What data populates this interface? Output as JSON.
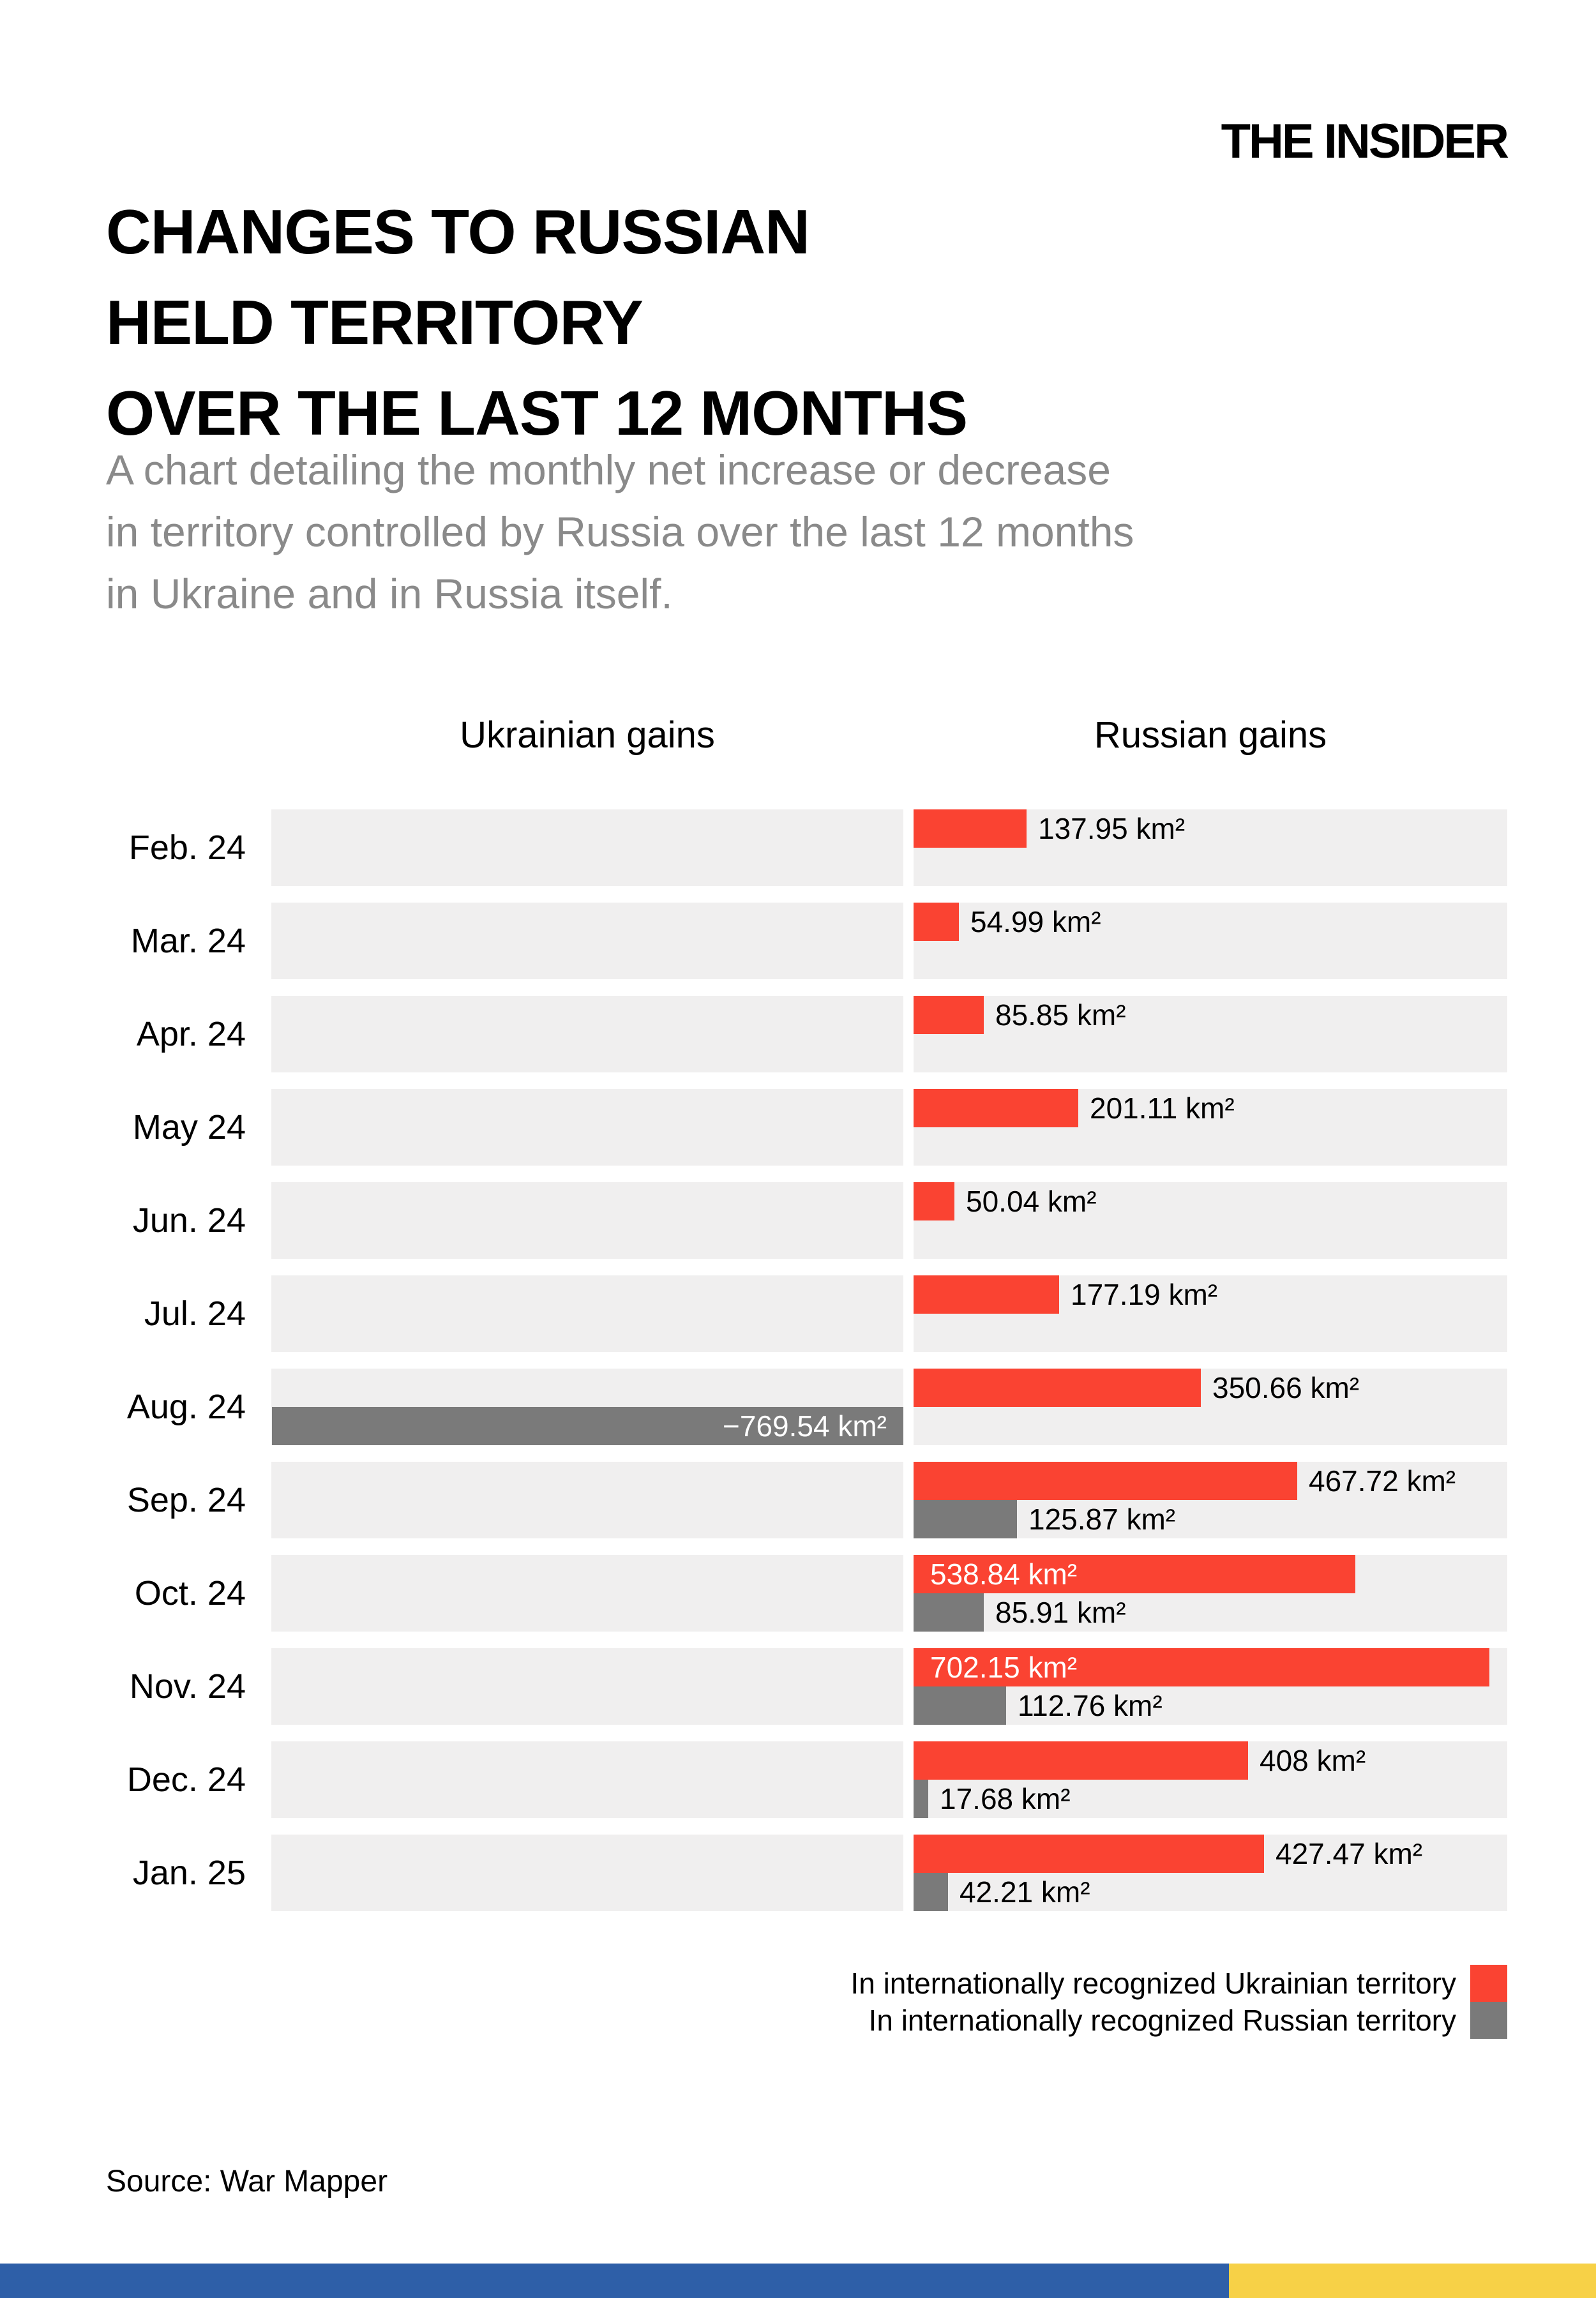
{
  "logo": "THE INSIDER",
  "title_lines": [
    "CHANGES TO RUSSIAN",
    "HELD TERRITORY",
    "OVER THE LAST 12 MONTHS"
  ],
  "subtitle_lines": [
    "A chart detailing the monthly net increase or decrease",
    "in territory controlled by Russia over the last 12 months",
    "in Ukraine and in Russia itself."
  ],
  "headers": {
    "left": "Ukrainian gains",
    "right": "Russian gains"
  },
  "legend": [
    {
      "label": "In internationally recognized Ukrainian territory",
      "color": "#fa4332"
    },
    {
      "label": "In internationally recognized Russian territory",
      "color": "#7a7a7a"
    }
  ],
  "source": "Source: War Mapper",
  "colors": {
    "red_bar": "#fa4332",
    "gray_bar": "#7a7a7a",
    "row_background": "#f0efef",
    "subtitle_text": "#8a8a8a",
    "flag_blue": "#2e5fa8",
    "flag_yellow": "#f7d147"
  },
  "axis": {
    "left_max_km2": 770,
    "right_max_km2": 724
  },
  "chart_data": {
    "type": "bar",
    "orientation": "horizontal-diverging",
    "title": "CHANGES TO RUSSIAN HELD TERRITORY OVER THE LAST 12 MONTHS",
    "unit": "km²",
    "left_axis_label": "Ukrainian gains",
    "right_axis_label": "Russian gains",
    "axis_ranges": {
      "left_max": 770,
      "right_max": 724
    },
    "legend_position": "bottom-right",
    "categories": [
      "Feb. 24",
      "Mar. 24",
      "Apr. 24",
      "May 24",
      "Jun. 24",
      "Jul. 24",
      "Aug. 24",
      "Sep. 24",
      "Oct. 24",
      "Nov. 24",
      "Dec. 24",
      "Jan. 25"
    ],
    "series": [
      {
        "name": "In internationally recognized Ukrainian territory",
        "color": "#fa4332",
        "values": [
          137.95,
          54.99,
          85.85,
          201.11,
          50.04,
          177.19,
          350.66,
          467.72,
          538.84,
          702.15,
          408,
          427.47
        ]
      },
      {
        "name": "In internationally recognized Russian territory",
        "color": "#7a7a7a",
        "values": [
          null,
          null,
          null,
          null,
          null,
          null,
          -769.54,
          125.87,
          85.91,
          112.76,
          17.68,
          42.21
        ]
      }
    ]
  },
  "rows": [
    {
      "month": "Feb. 24",
      "bars": [
        {
          "kind": "red",
          "value": 137.95,
          "label": "137.95 km²",
          "side": "right",
          "label_style": "outside"
        }
      ]
    },
    {
      "month": "Mar. 24",
      "bars": [
        {
          "kind": "red",
          "value": 54.99,
          "label": "54.99 km²",
          "side": "right",
          "label_style": "outside"
        }
      ]
    },
    {
      "month": "Apr. 24",
      "bars": [
        {
          "kind": "red",
          "value": 85.85,
          "label": "85.85 km²",
          "side": "right",
          "label_style": "outside"
        }
      ]
    },
    {
      "month": "May 24",
      "bars": [
        {
          "kind": "red",
          "value": 201.11,
          "label": "201.11 km²",
          "side": "right",
          "label_style": "outside"
        }
      ]
    },
    {
      "month": "Jun. 24",
      "bars": [
        {
          "kind": "red",
          "value": 50.04,
          "label": "50.04 km²",
          "side": "right",
          "label_style": "outside"
        }
      ]
    },
    {
      "month": "Jul. 24",
      "bars": [
        {
          "kind": "red",
          "value": 177.19,
          "label": "177.19 km²",
          "side": "right",
          "label_style": "outside"
        }
      ]
    },
    {
      "month": "Aug. 24",
      "bars": [
        {
          "kind": "red",
          "value": 350.66,
          "label": "350.66 km²",
          "side": "right",
          "label_style": "outside"
        },
        {
          "kind": "gray",
          "value": 769.54,
          "label": "−769.54 km²",
          "side": "left",
          "label_style": "inside-right"
        }
      ]
    },
    {
      "month": "Sep. 24",
      "bars": [
        {
          "kind": "red",
          "value": 467.72,
          "label": "467.72 km²",
          "side": "right",
          "label_style": "outside"
        },
        {
          "kind": "gray",
          "value": 125.87,
          "label": "125.87 km²",
          "side": "right",
          "label_style": "outside"
        }
      ]
    },
    {
      "month": "Oct. 24",
      "bars": [
        {
          "kind": "red",
          "value": 538.84,
          "label": "538.84 km²",
          "side": "right",
          "label_style": "inside-left"
        },
        {
          "kind": "gray",
          "value": 85.91,
          "label": "85.91 km²",
          "side": "right",
          "label_style": "outside"
        }
      ]
    },
    {
      "month": "Nov. 24",
      "bars": [
        {
          "kind": "red",
          "value": 702.15,
          "label": "702.15 km²",
          "side": "right",
          "label_style": "inside-left"
        },
        {
          "kind": "gray",
          "value": 112.76,
          "label": "112.76 km²",
          "side": "right",
          "label_style": "outside"
        }
      ]
    },
    {
      "month": "Dec. 24",
      "bars": [
        {
          "kind": "red",
          "value": 408,
          "label": "408 km²",
          "side": "right",
          "label_style": "outside"
        },
        {
          "kind": "gray",
          "value": 17.68,
          "label": "17.68 km²",
          "side": "right",
          "label_style": "outside"
        }
      ]
    },
    {
      "month": "Jan. 25",
      "bars": [
        {
          "kind": "red",
          "value": 427.47,
          "label": "427.47 km²",
          "side": "right",
          "label_style": "outside"
        },
        {
          "kind": "gray",
          "value": 42.21,
          "label": "42.21 km²",
          "side": "right",
          "label_style": "outside"
        }
      ]
    }
  ]
}
